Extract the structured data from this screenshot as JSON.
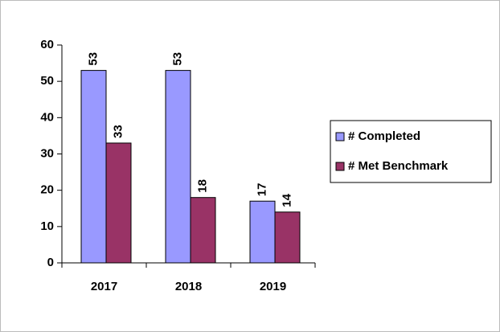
{
  "chart_data": {
    "type": "bar",
    "categories": [
      "2017",
      "2018",
      "2019"
    ],
    "series": [
      {
        "name": "# Completed",
        "color": "#9999ff",
        "values": [
          53,
          53,
          17
        ]
      },
      {
        "name": "# Met Benchmark",
        "color": "#993366",
        "values": [
          33,
          18,
          14
        ]
      }
    ],
    "ylim": [
      0,
      60
    ],
    "yticks": [
      0,
      10,
      20,
      30,
      40,
      50,
      60
    ],
    "grid": false,
    "legend": "right"
  }
}
